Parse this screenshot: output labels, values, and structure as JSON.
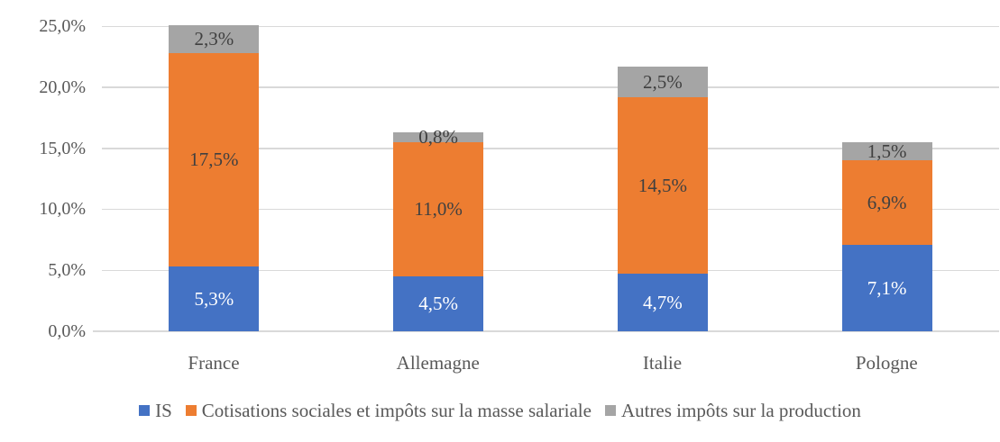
{
  "chart_data": {
    "type": "bar",
    "stacked": true,
    "title": "",
    "xlabel": "",
    "ylabel": "",
    "categories": [
      "France",
      "Allemagne",
      "Italie",
      "Pologne"
    ],
    "series": [
      {
        "name": "IS",
        "color": "#4472C4",
        "label_color": "#FFFFFF",
        "values": [
          5.3,
          4.5,
          4.7,
          7.1
        ],
        "value_labels": [
          "5,3%",
          "4,5%",
          "4,7%",
          "7,1%"
        ]
      },
      {
        "name": "Cotisations sociales et impôts sur la masse salariale",
        "color": "#ED7D31",
        "label_color": "#404040",
        "values": [
          17.5,
          11.0,
          14.5,
          6.9
        ],
        "value_labels": [
          "17,5%",
          "11,0%",
          "14,5%",
          "6,9%"
        ]
      },
      {
        "name": "Autres impôts sur la production",
        "color": "#A5A5A5",
        "label_color": "#404040",
        "values": [
          2.3,
          0.8,
          2.5,
          1.5
        ],
        "value_labels": [
          "2,3%",
          "0,8%",
          "2,5%",
          "1,5%"
        ]
      }
    ],
    "y_axis": {
      "range": [
        0,
        25
      ],
      "ticks": [
        {
          "value": 0,
          "label": "0,0%"
        },
        {
          "value": 5,
          "label": "5,0%"
        },
        {
          "value": 10,
          "label": "10,0%"
        },
        {
          "value": 15,
          "label": "15,0%"
        },
        {
          "value": 20,
          "label": "20,0%"
        },
        {
          "value": 25,
          "label": "25,0%"
        }
      ]
    },
    "grid": true,
    "legend_position": "bottom"
  },
  "colors": {
    "grid": "#D9D9D9",
    "axis_line": "#D9D9D9",
    "axis_text": "#595959",
    "background": "#FFFFFF"
  }
}
